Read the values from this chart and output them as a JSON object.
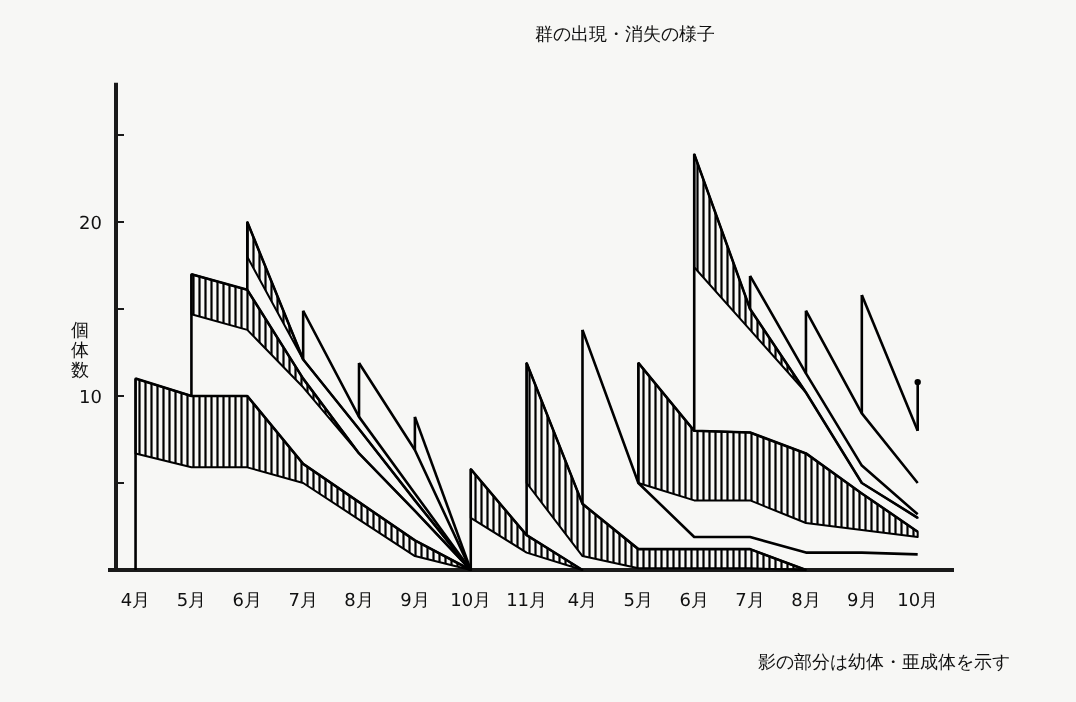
{
  "chart_data": {
    "type": "line",
    "title": "群の出現・消失の様子",
    "ylabel": "個体数",
    "annotations": [
      "影の部分は幼体・亜成体を示す"
    ],
    "categories": [
      "4月",
      "5月",
      "6月",
      "7月",
      "8月",
      "9月",
      "10月",
      "11月",
      "4月",
      "5月",
      "6月",
      "7月",
      "8月",
      "9月",
      "10月"
    ],
    "ylim": [
      0,
      28
    ],
    "yticks": [
      {
        "value": 5,
        "label": null
      },
      10,
      {
        "value": 15,
        "label": null
      },
      20,
      {
        "value": 25,
        "label": null
      }
    ],
    "series": [
      {
        "color": "#000000",
        "errors": [
          [
            0,
            11
          ],
          null,
          null,
          null,
          null,
          null,
          null,
          null,
          null,
          null,
          null,
          null,
          null,
          null,
          null
        ],
        "values": [
          11,
          10,
          10,
          6.1,
          3.9,
          1.7,
          0,
          null,
          null,
          null,
          null,
          null,
          null,
          null,
          null
        ],
        "upper": [
          11,
          10,
          10,
          6.1,
          3.9,
          1.7,
          0,
          null,
          null,
          null,
          null,
          null,
          null,
          null,
          null
        ],
        "lower": [
          6.7,
          5.9,
          5.9,
          5,
          2.9,
          0.8,
          0,
          null,
          null,
          null,
          null,
          null,
          null,
          null,
          null
        ]
      },
      {
        "color": "#000000",
        "errors": [
          null,
          [
            10,
            17
          ],
          null,
          null,
          null,
          null,
          null,
          null,
          null,
          null,
          null,
          null,
          null,
          null,
          null
        ],
        "values": [
          null,
          17,
          16.1,
          11,
          6.7,
          3.4,
          0,
          null,
          null,
          null,
          null,
          null,
          null,
          null,
          null
        ],
        "upper": [
          null,
          17,
          16.1,
          11,
          6.7,
          3.4,
          0,
          null,
          null,
          null,
          null,
          null,
          null,
          null,
          null
        ],
        "lower": [
          null,
          14.7,
          13.8,
          10.5,
          6.7,
          3.4,
          0,
          null,
          null,
          null,
          null,
          null,
          null,
          null,
          null
        ]
      },
      {
        "color": "#000000",
        "errors": [
          null,
          null,
          [
            16.1,
            20
          ],
          null,
          null,
          null,
          null,
          null,
          null,
          null,
          null,
          null,
          null,
          null,
          null
        ],
        "values": [
          null,
          null,
          20,
          12.1,
          8.1,
          4.0,
          0,
          null,
          null,
          null,
          null,
          null,
          null,
          null,
          null
        ],
        "upper": [
          null,
          null,
          20,
          12.1,
          8.1,
          4.0,
          0,
          null,
          null,
          null,
          null,
          null,
          null,
          null,
          null
        ],
        "lower": [
          null,
          null,
          18,
          12.1,
          8.1,
          4.0,
          0,
          null,
          null,
          null,
          null,
          null,
          null,
          null,
          null
        ]
      },
      {
        "color": "#000000",
        "errors": [
          null,
          null,
          null,
          [
            12.1,
            14.9
          ],
          null,
          null,
          null,
          null,
          null,
          null,
          null,
          null,
          null,
          null,
          null
        ],
        "values": [
          null,
          null,
          null,
          14.9,
          8.8,
          4.4,
          0,
          null,
          null,
          null,
          null,
          null,
          null,
          null,
          null
        ]
      },
      {
        "color": "#000000",
        "errors": [
          null,
          null,
          null,
          null,
          [
            8.8,
            11.9
          ],
          null,
          null,
          null,
          null,
          null,
          null,
          null,
          null,
          null,
          null
        ],
        "values": [
          null,
          null,
          null,
          null,
          11.9,
          6.9,
          0,
          null,
          null,
          null,
          null,
          null,
          null,
          null,
          null
        ]
      },
      {
        "color": "#000000",
        "errors": [
          null,
          null,
          null,
          null,
          null,
          [
            6.9,
            8.8
          ],
          null,
          null,
          null,
          null,
          null,
          null,
          null,
          null,
          null
        ],
        "values": [
          null,
          null,
          null,
          null,
          null,
          8.8,
          0,
          null,
          null,
          null,
          null,
          null,
          null,
          null,
          null
        ]
      },
      {
        "color": "#000000",
        "errors": [
          null,
          null,
          null,
          null,
          null,
          null,
          [
            0,
            5.8
          ],
          null,
          null,
          null,
          null,
          null,
          null,
          null,
          null
        ],
        "values": [
          null,
          null,
          null,
          null,
          null,
          null,
          5.8,
          2.0,
          0,
          null,
          null,
          null,
          null,
          null,
          null
        ],
        "upper": [
          null,
          null,
          null,
          null,
          null,
          null,
          5.8,
          2.0,
          0,
          null,
          null,
          null,
          null,
          null,
          null
        ],
        "lower": [
          null,
          null,
          null,
          null,
          null,
          null,
          3.0,
          1.0,
          0,
          null,
          null,
          null,
          null,
          null,
          null
        ]
      },
      {
        "color": "#000000",
        "errors": [
          null,
          null,
          null,
          null,
          null,
          null,
          null,
          [
            2.0,
            11.9
          ],
          null,
          null,
          null,
          null,
          null,
          null,
          null
        ],
        "values": [
          null,
          null,
          null,
          null,
          null,
          null,
          null,
          11.9,
          3.8,
          1.2,
          1.2,
          1.2,
          0,
          null,
          null
        ],
        "upper": [
          null,
          null,
          null,
          null,
          null,
          null,
          null,
          11.9,
          3.8,
          1.2,
          1.2,
          1.2,
          0,
          null,
          null
        ],
        "lower": [
          null,
          null,
          null,
          null,
          null,
          null,
          null,
          5.0,
          0.8,
          0.1,
          0.1,
          0.1,
          0,
          null,
          null
        ]
      },
      {
        "color": "#000000",
        "errors": [
          null,
          null,
          null,
          null,
          null,
          null,
          null,
          null,
          [
            3.8,
            13.8
          ],
          null,
          null,
          null,
          null,
          null,
          null
        ],
        "values": [
          null,
          null,
          null,
          null,
          null,
          null,
          null,
          null,
          13.8,
          5.0,
          1.9,
          1.9,
          1.0,
          1.0,
          0.9
        ]
      },
      {
        "color": "#000000",
        "errors": [
          null,
          null,
          null,
          null,
          null,
          null,
          null,
          null,
          null,
          [
            5.0,
            11.9
          ],
          null,
          null,
          null,
          null,
          null
        ],
        "values": [
          null,
          null,
          null,
          null,
          null,
          null,
          null,
          null,
          null,
          11.9,
          8.0,
          7.9,
          6.7,
          4.4,
          2.2
        ],
        "upper": [
          null,
          null,
          null,
          null,
          null,
          null,
          null,
          null,
          null,
          11.9,
          8.0,
          7.9,
          6.7,
          4.4,
          2.2
        ],
        "lower": [
          null,
          null,
          null,
          null,
          null,
          null,
          null,
          null,
          null,
          5.0,
          4.0,
          4.0,
          2.7,
          2.3,
          1.9
        ]
      },
      {
        "color": "#000000",
        "errors": [
          null,
          null,
          null,
          null,
          null,
          null,
          null,
          null,
          null,
          null,
          [
            8.0,
            23.9
          ],
          null,
          null,
          null,
          null
        ],
        "values": [
          null,
          null,
          null,
          null,
          null,
          null,
          null,
          null,
          null,
          null,
          23.9,
          15.0,
          10.2,
          5.0,
          3.0
        ],
        "upper": [
          null,
          null,
          null,
          null,
          null,
          null,
          null,
          null,
          null,
          null,
          23.9,
          15.0,
          10.2,
          5.0,
          3.0
        ],
        "lower": [
          null,
          null,
          null,
          null,
          null,
          null,
          null,
          null,
          null,
          null,
          17.4,
          13.8,
          10.2,
          5.0,
          3.0
        ]
      },
      {
        "color": "#000000",
        "errors": [
          null,
          null,
          null,
          null,
          null,
          null,
          null,
          null,
          null,
          null,
          null,
          [
            15.0,
            16.9
          ],
          null,
          null,
          null
        ],
        "values": [
          null,
          null,
          null,
          null,
          null,
          null,
          null,
          null,
          null,
          null,
          null,
          16.9,
          11.3,
          6.0,
          3.2
        ]
      },
      {
        "color": "#000000",
        "errors": [
          null,
          null,
          null,
          null,
          null,
          null,
          null,
          null,
          null,
          null,
          null,
          null,
          [
            11.3,
            14.9
          ],
          null,
          null
        ],
        "values": [
          null,
          null,
          null,
          null,
          null,
          null,
          null,
          null,
          null,
          null,
          null,
          null,
          14.9,
          9.0,
          5.0
        ]
      },
      {
        "color": "#000000",
        "errors": [
          null,
          null,
          null,
          null,
          null,
          null,
          null,
          null,
          null,
          null,
          null,
          null,
          null,
          [
            9.0,
            15.8
          ],
          null
        ],
        "values": [
          null,
          null,
          null,
          null,
          null,
          null,
          null,
          null,
          null,
          null,
          null,
          null,
          null,
          15.8,
          8.0
        ]
      },
      {
        "color": "#000000",
        "marker": "circle",
        "errors": [
          null,
          null,
          null,
          null,
          null,
          null,
          null,
          null,
          null,
          null,
          null,
          null,
          null,
          null,
          [
            8.0,
            10.8
          ]
        ],
        "values": [
          null,
          null,
          null,
          null,
          null,
          null,
          null,
          null,
          null,
          null,
          null,
          null,
          null,
          null,
          10.8
        ]
      }
    ]
  }
}
